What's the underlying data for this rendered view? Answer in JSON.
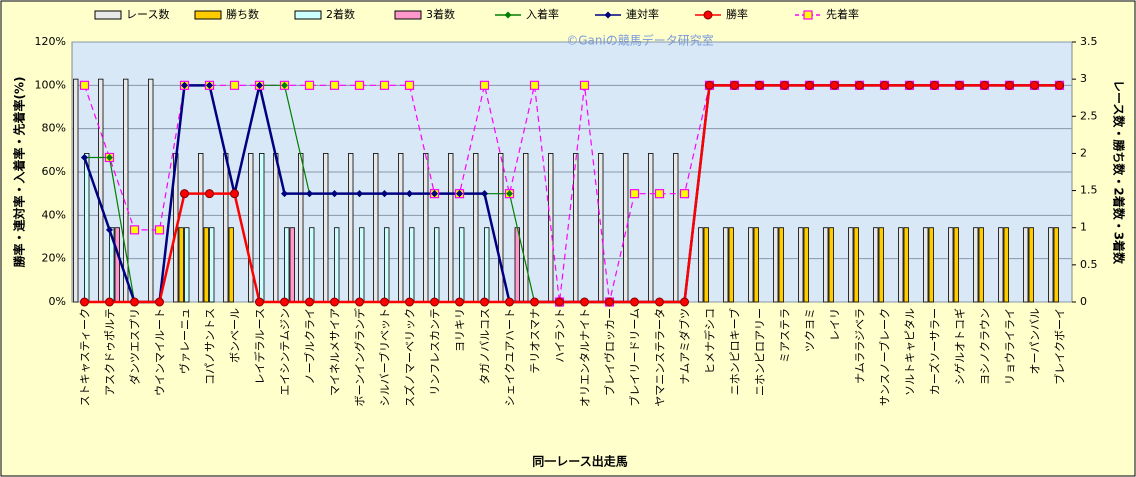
{
  "chart_data": {
    "type": "bar-line",
    "watermark": "©Ganiの競馬データ研究室",
    "x_label": "同一レース出走馬",
    "y_label": "勝率・連対率・入着率・先着率(%)",
    "y2_label": "レース数・勝ち数・2着数・3着数",
    "categories": [
      "ストキャスティーク",
      "アスクドゥポルテ",
      "ダンツエスプリ",
      "ウインマイルート",
      "ヴァレーニュ",
      "コパノサントス",
      "ボンベール",
      "レイデラルース",
      "エイシンテムジン",
      "ノーブルクライ",
      "マイネルメサイア",
      "ボーンイングランデ",
      "シルバーブリベット",
      "スズノマーベリック",
      "リンフレスカンテ",
      "ヨリキリ",
      "タガノバルコス",
      "シェイクユアハート",
      "テリオスマナ",
      "ハイラント",
      "オリエンタルナイト",
      "ブレイヴロッカー",
      "ブレイリードリーム",
      "ヤマニンステラータ",
      "ナムアミダブツ",
      "ヒメナデシコ",
      "ニホンピロキーブ",
      "ニホンピロアリー",
      "ミアステラ",
      "ツクヨミ",
      "レイリ",
      "ナムララジベラ",
      "サンスノーブレーク",
      "ソルトキャピタル",
      "カーズソーサラー",
      "シゲルオトコギ",
      "ヨシノクラウン",
      "リョウライライ",
      "オーパンバル",
      "ブレイクボーイ"
    ],
    "ylim": [
      0,
      120
    ],
    "yticks": [
      {
        "value": 0,
        "label": "0%"
      },
      {
        "value": 20,
        "label": "20%"
      },
      {
        "value": 40,
        "label": "40%"
      },
      {
        "value": 60,
        "label": "60%"
      },
      {
        "value": 80,
        "label": "80%"
      },
      {
        "value": 100,
        "label": "100%"
      },
      {
        "value": 120,
        "label": "120%"
      }
    ],
    "y2lim": [
      0,
      3.5
    ],
    "y2ticks": [
      0,
      0.5,
      1,
      1.5,
      2,
      2.5,
      3,
      3.5
    ],
    "grid": true,
    "series": [
      {
        "name": "レース数",
        "kind": "bar",
        "axis": "y2",
        "color": "#e8e8e8",
        "values": [
          3,
          3,
          3,
          3,
          2,
          2,
          2,
          2,
          2,
          2,
          2,
          2,
          2,
          2,
          2,
          2,
          2,
          2,
          2,
          2,
          2,
          2,
          2,
          2,
          2,
          1,
          1,
          1,
          1,
          1,
          1,
          1,
          1,
          1,
          1,
          1,
          1,
          1,
          1,
          1
        ]
      },
      {
        "name": "勝ち数",
        "kind": "bar",
        "axis": "y2",
        "color": "#ffcc00",
        "values": [
          0,
          0,
          0,
          0,
          1,
          1,
          1,
          0,
          0,
          0,
          0,
          0,
          0,
          0,
          0,
          0,
          0,
          0,
          0,
          0,
          0,
          0,
          0,
          0,
          0,
          1,
          1,
          1,
          1,
          1,
          1,
          1,
          1,
          1,
          1,
          1,
          1,
          1,
          1,
          1
        ]
      },
      {
        "name": "2着数",
        "kind": "bar",
        "axis": "y2",
        "color": "#ccffff",
        "values": [
          2,
          1,
          0,
          0,
          1,
          1,
          0,
          2,
          1,
          1,
          1,
          1,
          1,
          1,
          1,
          1,
          1,
          0,
          0,
          0,
          0,
          0,
          0,
          0,
          0,
          0,
          0,
          0,
          0,
          0,
          0,
          0,
          0,
          0,
          0,
          0,
          0,
          0,
          0,
          0
        ]
      },
      {
        "name": "3着数",
        "kind": "bar",
        "axis": "y2",
        "color": "#ff99cc",
        "values": [
          0,
          1,
          0,
          0,
          0,
          0,
          0,
          0,
          1,
          0,
          0,
          0,
          0,
          0,
          0,
          0,
          0,
          1,
          0,
          0,
          0,
          0,
          0,
          0,
          0,
          0,
          0,
          0,
          0,
          0,
          0,
          0,
          0,
          0,
          0,
          0,
          0,
          0,
          0,
          0
        ]
      },
      {
        "name": "入着率",
        "kind": "line",
        "marker": "diamond",
        "color": "#008000",
        "values": [
          66.7,
          66.7,
          0,
          0,
          100,
          100,
          50,
          100,
          100,
          50,
          50,
          50,
          50,
          50,
          50,
          50,
          50,
          50,
          0,
          0,
          0,
          0,
          0,
          0,
          0,
          100,
          100,
          100,
          100,
          100,
          100,
          100,
          100,
          100,
          100,
          100,
          100,
          100,
          100,
          100
        ]
      },
      {
        "name": "連対率",
        "kind": "line",
        "marker": "diamond",
        "color": "#000080",
        "values": [
          66.7,
          33.3,
          0,
          0,
          100,
          100,
          50,
          100,
          50,
          50,
          50,
          50,
          50,
          50,
          50,
          50,
          50,
          0,
          0,
          0,
          0,
          0,
          0,
          0,
          0,
          100,
          100,
          100,
          100,
          100,
          100,
          100,
          100,
          100,
          100,
          100,
          100,
          100,
          100,
          100
        ]
      },
      {
        "name": "勝率",
        "kind": "line",
        "marker": "circle",
        "color": "#ff0000",
        "values": [
          0,
          0,
          0,
          0,
          50,
          50,
          50,
          0,
          0,
          0,
          0,
          0,
          0,
          0,
          0,
          0,
          0,
          0,
          0,
          0,
          0,
          0,
          0,
          0,
          0,
          100,
          100,
          100,
          100,
          100,
          100,
          100,
          100,
          100,
          100,
          100,
          100,
          100,
          100,
          100
        ]
      },
      {
        "name": "先着率",
        "kind": "line",
        "marker": "square",
        "dashed": true,
        "color": "#ff00ff",
        "values": [
          100,
          66.7,
          33.3,
          33.3,
          100,
          100,
          100,
          100,
          100,
          100,
          100,
          100,
          100,
          100,
          50,
          50,
          100,
          50,
          100,
          0,
          100,
          0,
          50,
          50,
          50,
          100,
          100,
          100,
          100,
          100,
          100,
          100,
          100,
          100,
          100,
          100,
          100,
          100,
          100,
          100
        ]
      }
    ]
  }
}
